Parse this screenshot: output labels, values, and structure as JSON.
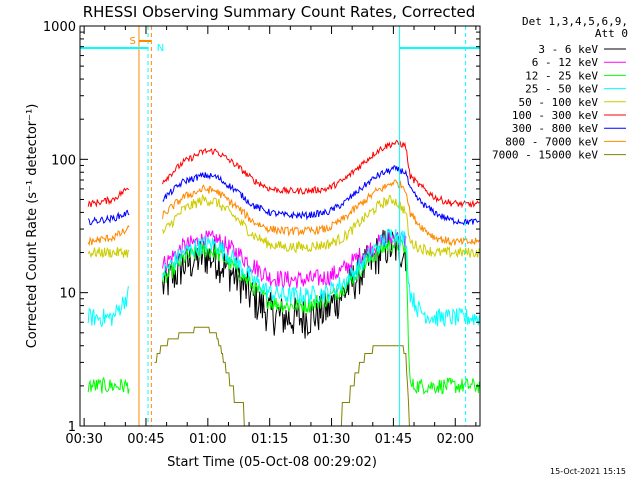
{
  "chart_data": {
    "type": "line",
    "title": "RHESSI Observing Summary Count Rates, Corrected",
    "xlabel": "Start Time (05-Oct-08 00:29:02)",
    "ylabel": "Corrected Count Rate (s⁻¹ detector⁻¹)",
    "yscale": "log",
    "ylim": [
      1,
      1000
    ],
    "xlim_minutes": [
      0,
      97
    ],
    "x_ticks": [
      {
        "minute": 1,
        "label": "00:30"
      },
      {
        "minute": 16,
        "label": "00:45"
      },
      {
        "minute": 31,
        "label": "01:00"
      },
      {
        "minute": 46,
        "label": "01:15"
      },
      {
        "minute": 61,
        "label": "01:30"
      },
      {
        "minute": 76,
        "label": "01:45"
      },
      {
        "minute": 91,
        "label": "02:00"
      }
    ],
    "y_ticks": [
      {
        "value": 1,
        "label": "1"
      },
      {
        "value": 10,
        "label": "10"
      },
      {
        "value": 100,
        "label": "100"
      },
      {
        "value": 1000,
        "label": "1000"
      }
    ],
    "legend_header": [
      "Det 1,3,4,5,6,9,",
      "Att 0"
    ],
    "legend_position": "right",
    "series": [
      {
        "name": "3 - 6 keV",
        "color": "#000000",
        "noise": 0.16,
        "x": [
          2,
          8,
          12,
          13,
          14,
          15,
          16,
          17,
          20,
          25,
          30,
          33,
          38,
          42,
          46,
          50,
          55,
          60,
          64,
          68,
          72,
          74,
          76,
          78,
          79,
          80,
          82,
          84,
          86,
          88,
          90,
          93,
          95,
          97
        ],
        "y": [
          null,
          null,
          null,
          null,
          null,
          null,
          null,
          null,
          11,
          16,
          19,
          18,
          13,
          9,
          7,
          6.5,
          6.5,
          7.5,
          10,
          14,
          19,
          22,
          22,
          21,
          20,
          null,
          null,
          null,
          null,
          null,
          null,
          null,
          null,
          null
        ]
      },
      {
        "name": "6 - 12 keV",
        "color": "#ff00ff",
        "noise": 0.07,
        "x": [
          2,
          8,
          12,
          13,
          14,
          15,
          16,
          17,
          20,
          25,
          30,
          33,
          38,
          42,
          46,
          50,
          55,
          60,
          64,
          68,
          72,
          74,
          76,
          78,
          79,
          80,
          82,
          84,
          86,
          88,
          90,
          93,
          95,
          97
        ],
        "y": [
          null,
          null,
          null,
          null,
          null,
          null,
          null,
          null,
          16,
          22,
          25,
          25,
          20,
          16,
          13,
          12.5,
          12.5,
          13,
          15,
          19,
          23,
          25,
          26,
          25,
          24,
          null,
          null,
          null,
          null,
          null,
          null,
          null,
          null,
          null
        ]
      },
      {
        "name": "12 - 25 keV",
        "color": "#00ff00",
        "noise": 0.06,
        "x": [
          2,
          8,
          12,
          13,
          14,
          15,
          16,
          17,
          20,
          25,
          30,
          33,
          38,
          42,
          46,
          50,
          55,
          60,
          64,
          68,
          72,
          74,
          76,
          78,
          79,
          80,
          82,
          84,
          86,
          88,
          90,
          93,
          95,
          97
        ],
        "y": [
          2,
          2,
          2,
          null,
          null,
          null,
          null,
          null,
          12,
          18,
          21,
          20,
          15,
          11,
          8.5,
          8,
          8,
          9,
          11,
          15,
          20,
          22,
          23,
          22,
          21,
          2,
          2,
          2,
          2,
          2,
          2,
          2,
          2,
          2
        ]
      },
      {
        "name": "25 - 50 keV",
        "color": "#00ffff",
        "noise": 0.07,
        "x": [
          2,
          8,
          12,
          13,
          14,
          15,
          16,
          17,
          20,
          25,
          30,
          33,
          38,
          42,
          46,
          50,
          55,
          60,
          64,
          68,
          72,
          74,
          76,
          78,
          79,
          80,
          82,
          84,
          86,
          88,
          90,
          93,
          95,
          97
        ],
        "y": [
          6.5,
          6.5,
          10,
          null,
          null,
          null,
          null,
          null,
          14,
          20,
          23,
          23,
          17,
          12.5,
          10,
          9.5,
          9.5,
          10,
          12,
          16,
          22,
          25,
          28,
          26,
          25,
          10,
          7.5,
          6.8,
          6.5,
          6.5,
          6.5,
          6.5,
          6.5,
          6.5
        ]
      },
      {
        "name": "50 - 100 keV",
        "color": "#cccc00",
        "noise": 0.04,
        "x": [
          2,
          8,
          12,
          13,
          14,
          15,
          16,
          17,
          20,
          25,
          30,
          33,
          38,
          42,
          46,
          50,
          55,
          60,
          64,
          68,
          72,
          74,
          76,
          78,
          79,
          80,
          82,
          84,
          86,
          88,
          90,
          93,
          95,
          97
        ],
        "y": [
          20,
          20,
          20,
          null,
          null,
          null,
          null,
          null,
          28,
          42,
          50,
          48,
          36,
          27,
          23,
          22,
          22,
          23,
          26,
          34,
          44,
          48,
          50,
          44,
          40,
          24,
          22,
          21,
          20,
          20,
          20,
          20,
          20,
          20
        ]
      },
      {
        "name": "100 - 300 keV",
        "color": "#ff0000",
        "noise": 0.025,
        "x": [
          2,
          8,
          12,
          13,
          14,
          15,
          16,
          17,
          20,
          25,
          30,
          33,
          38,
          42,
          46,
          50,
          55,
          60,
          64,
          68,
          72,
          74,
          76,
          78,
          79,
          80,
          82,
          84,
          86,
          88,
          90,
          93,
          95,
          97
        ],
        "y": [
          46,
          50,
          62,
          null,
          null,
          null,
          null,
          null,
          68,
          95,
          115,
          115,
          90,
          70,
          60,
          58,
          58,
          60,
          70,
          90,
          115,
          125,
          132,
          130,
          125,
          75,
          65,
          58,
          52,
          49,
          47,
          46,
          46,
          46
        ]
      },
      {
        "name": "300 - 800 keV",
        "color": "#0000ff",
        "noise": 0.025,
        "x": [
          2,
          8,
          12,
          13,
          14,
          15,
          16,
          17,
          20,
          25,
          30,
          33,
          38,
          42,
          46,
          50,
          55,
          60,
          64,
          68,
          72,
          74,
          76,
          78,
          79,
          80,
          82,
          84,
          86,
          88,
          90,
          93,
          95,
          97
        ],
        "y": [
          34,
          36,
          40,
          null,
          null,
          null,
          null,
          null,
          50,
          68,
          76,
          74,
          58,
          45,
          40,
          38,
          38,
          40,
          47,
          60,
          75,
          80,
          85,
          82,
          80,
          60,
          50,
          44,
          40,
          37,
          35,
          34,
          34,
          34
        ]
      },
      {
        "name": "800 - 7000 keV",
        "color": "#ff8800",
        "noise": 0.03,
        "x": [
          2,
          8,
          12,
          13,
          14,
          15,
          16,
          17,
          20,
          25,
          30,
          33,
          38,
          42,
          46,
          50,
          55,
          60,
          64,
          68,
          72,
          74,
          76,
          78,
          79,
          80,
          82,
          84,
          86,
          88,
          90,
          93,
          95,
          97
        ],
        "y": [
          24,
          26,
          30,
          null,
          null,
          null,
          null,
          null,
          38,
          52,
          60,
          58,
          44,
          34,
          30,
          29,
          29,
          30,
          36,
          46,
          58,
          62,
          68,
          64,
          60,
          40,
          33,
          29,
          26,
          25,
          24,
          24,
          24,
          24
        ]
      },
      {
        "name": "7000 - 15000 keV",
        "color": "#808000",
        "noise": 0,
        "x": [
          2,
          8,
          12,
          13,
          14,
          15,
          16,
          17,
          18,
          20,
          25,
          30,
          33,
          35,
          38,
          42,
          46,
          50,
          55,
          60,
          64,
          66,
          68,
          70,
          72,
          74,
          76,
          78,
          79,
          80,
          82,
          84,
          86,
          88,
          90,
          93,
          95,
          97
        ],
        "y": [
          null,
          null,
          1,
          null,
          null,
          null,
          null,
          null,
          3,
          4,
          5,
          5.5,
          5,
          3,
          1.5,
          1,
          1,
          1,
          1,
          1,
          1.3,
          2,
          3,
          3.5,
          4,
          4,
          4,
          4,
          3.5,
          1,
          1,
          1,
          1,
          1,
          1,
          1,
          1,
          1
        ]
      }
    ],
    "annotations": [
      {
        "text": "S",
        "color": "#ff8800"
      },
      {
        "text": "N",
        "color": "#00ffff"
      }
    ],
    "footer": "15-Oct-2021 15:15"
  }
}
